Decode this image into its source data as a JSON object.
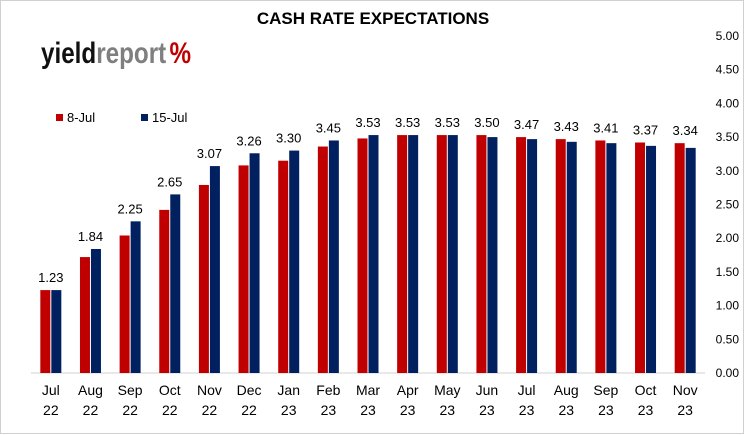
{
  "chart_data": {
    "type": "bar",
    "title": "CASH RATE EXPECTATIONS",
    "logo": {
      "part1": "yield",
      "part2": "report",
      "symbol": "%"
    },
    "categories": [
      [
        "Jul",
        "22"
      ],
      [
        "Aug",
        "22"
      ],
      [
        "Sep",
        "22"
      ],
      [
        "Oct",
        "22"
      ],
      [
        "Nov",
        "22"
      ],
      [
        "Dec",
        "22"
      ],
      [
        "Jan",
        "23"
      ],
      [
        "Feb",
        "23"
      ],
      [
        "Mar",
        "23"
      ],
      [
        "Apr",
        "23"
      ],
      [
        "May",
        "23"
      ],
      [
        "Jun",
        "23"
      ],
      [
        "Jul",
        "23"
      ],
      [
        "Aug",
        "23"
      ],
      [
        "Sep",
        "23"
      ],
      [
        "Oct",
        "23"
      ],
      [
        "Nov",
        "23"
      ]
    ],
    "series": [
      {
        "name": "8-Jul",
        "color": "#c00000",
        "values": [
          1.23,
          1.72,
          2.04,
          2.42,
          2.79,
          3.08,
          3.15,
          3.36,
          3.48,
          3.53,
          3.53,
          3.53,
          3.5,
          3.47,
          3.45,
          3.42,
          3.41
        ]
      },
      {
        "name": "15-Jul",
        "color": "#002060",
        "values": [
          1.23,
          1.84,
          2.25,
          2.65,
          3.07,
          3.26,
          3.3,
          3.45,
          3.53,
          3.53,
          3.53,
          3.5,
          3.47,
          3.43,
          3.41,
          3.37,
          3.34
        ]
      }
    ],
    "data_labels": [
      "1.23",
      "1.84",
      "2.25",
      "2.65",
      "3.07",
      "3.26",
      "3.30",
      "3.45",
      "3.53",
      "3.53",
      "3.53",
      "3.50",
      "3.47",
      "3.43",
      "3.41",
      "3.37",
      "3.34"
    ],
    "y_ticks": [
      "0.00",
      "0.50",
      "1.00",
      "1.50",
      "2.00",
      "2.50",
      "3.00",
      "3.50",
      "4.00",
      "4.50",
      "5.00"
    ],
    "ylim": [
      0,
      5
    ],
    "y_axis_position": "right",
    "legend_position": "top-left",
    "grid": false
  }
}
